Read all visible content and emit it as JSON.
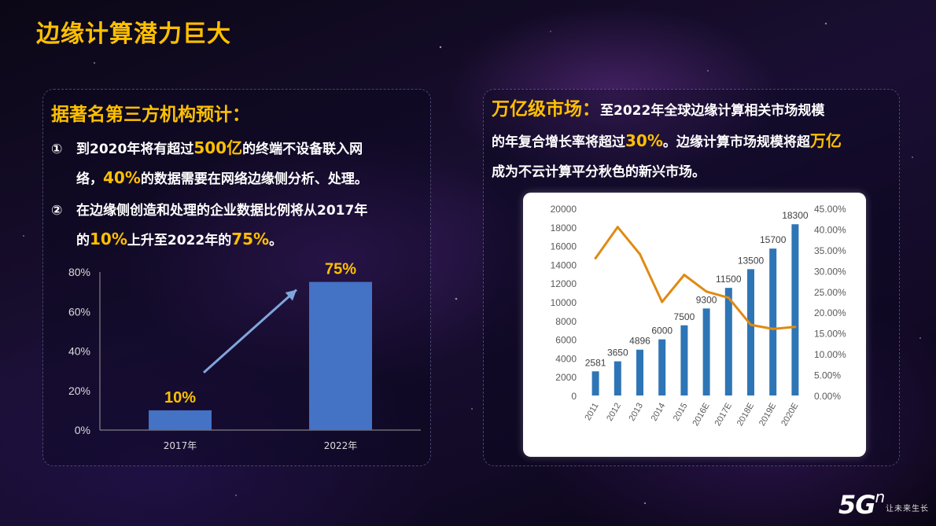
{
  "title": "边缘计算潜力巨大",
  "left": {
    "heading": "据著名第三方机构预计：",
    "point1": {
      "num": "①",
      "t1": "到2020年将有超过",
      "h1": "500亿",
      "t2": "的终端不设备联入网",
      "t3": "络，",
      "h2": "40%",
      "t4": "的数据需要在网络边缘侧分析、处理。"
    },
    "point2": {
      "num": "②",
      "t1": "在边缘侧创造和处理的企业数据比例将从2017年",
      "t2": "的",
      "h1": "10%",
      "t3": "上升至2022年的",
      "h2": "75%",
      "t4": "。"
    }
  },
  "right": {
    "lead": "万亿级市场：",
    "t1": "至2022年全球边缘计算相关市场规模",
    "t2": "的年复合增长率将超过",
    "h1": "30%",
    "t3": "。边缘计算市场规模将超",
    "h2": "万亿",
    "t4": "成为不云计算平分秋色的新兴市场。"
  },
  "logo": {
    "main": "5G",
    "sup": "n",
    "tag": "让未来生长"
  },
  "colors": {
    "accent": "#ffc000",
    "bar": "#4472c4",
    "line": "#e08a12",
    "bar2": "#2e75b6"
  },
  "chart_data": [
    {
      "type": "bar",
      "categories": [
        "2017年",
        "2022年"
      ],
      "values": [
        10,
        75
      ],
      "labels": [
        "10%",
        "75%"
      ],
      "yticks": [
        "0%",
        "20%",
        "40%",
        "60%",
        "80%"
      ],
      "ylim": [
        0,
        80
      ],
      "grid": false
    },
    {
      "type": "bar+line",
      "categories": [
        "2011",
        "2012",
        "2013",
        "2014",
        "2015",
        "2016E",
        "2017E",
        "2018E",
        "2019E",
        "2020E"
      ],
      "series": [
        {
          "axis": "left",
          "values": [
            2581,
            3650,
            4896,
            6000,
            7500,
            9300,
            11500,
            13500,
            15700,
            18300
          ]
        },
        {
          "axis": "right",
          "values": [
            33,
            40.5,
            34,
            22.5,
            29,
            25,
            23.5,
            17,
            16,
            16.5
          ]
        }
      ],
      "bar_labels": [
        "2581",
        "3650",
        "4896",
        "6000",
        "7500",
        "9300",
        "11500",
        "13500",
        "15700",
        "18300"
      ],
      "ylim_left": [
        0,
        20000
      ],
      "yticks_left": [
        "0",
        "2000",
        "4000",
        "6000",
        "8000",
        "10000",
        "12000",
        "14000",
        "16000",
        "18000",
        "20000"
      ],
      "ylim_right": [
        0,
        45
      ],
      "yticks_right": [
        "0.00%",
        "5.00%",
        "10.00%",
        "15.00%",
        "20.00%",
        "25.00%",
        "30.00%",
        "35.00%",
        "40.00%",
        "45.00%"
      ],
      "grid": false
    }
  ]
}
